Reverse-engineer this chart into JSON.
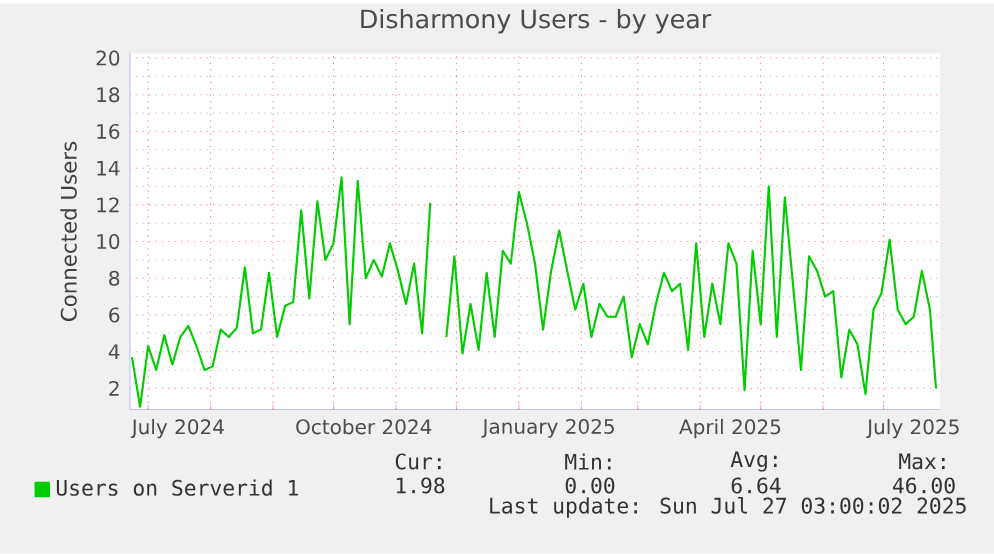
{
  "chart_data": {
    "type": "line",
    "title": "Disharmony Users - by year",
    "ylabel": "Connected Users",
    "x": [
      "2024-06-23",
      "2024-06-27",
      "2024-07-01",
      "2024-07-05",
      "2024-07-09",
      "2024-07-13",
      "2024-07-17",
      "2024-07-21",
      "2024-07-25",
      "2024-07-29",
      "2024-08-02",
      "2024-08-06",
      "2024-08-10",
      "2024-08-14",
      "2024-08-18",
      "2024-08-22",
      "2024-08-26",
      "2024-08-30",
      "2024-09-03",
      "2024-09-07",
      "2024-09-11",
      "2024-09-15",
      "2024-09-19",
      "2024-09-23",
      "2024-09-27",
      "2024-10-01",
      "2024-10-05",
      "2024-10-09",
      "2024-10-13",
      "2024-10-17",
      "2024-10-21",
      "2024-10-25",
      "2024-10-29",
      "2024-11-02",
      "2024-11-06",
      "2024-11-10",
      "2024-11-14",
      "2024-11-18",
      "2024-11-22",
      "2024-11-26",
      "2024-11-30",
      "2024-12-04",
      "2024-12-08",
      "2024-12-12",
      "2024-12-16",
      "2024-12-20",
      "2024-12-24",
      "2024-12-28",
      "2025-01-01",
      "2025-01-05",
      "2025-01-09",
      "2025-01-13",
      "2025-01-17",
      "2025-01-21",
      "2025-01-25",
      "2025-01-29",
      "2025-02-02",
      "2025-02-06",
      "2025-02-10",
      "2025-02-14",
      "2025-02-18",
      "2025-02-22",
      "2025-02-26",
      "2025-03-02",
      "2025-03-06",
      "2025-03-10",
      "2025-03-14",
      "2025-03-18",
      "2025-03-22",
      "2025-03-26",
      "2025-03-30",
      "2025-04-03",
      "2025-04-07",
      "2025-04-11",
      "2025-04-15",
      "2025-04-19",
      "2025-04-23",
      "2025-04-27",
      "2025-05-01",
      "2025-05-05",
      "2025-05-09",
      "2025-05-13",
      "2025-05-17",
      "2025-05-21",
      "2025-05-25",
      "2025-05-29",
      "2025-06-02",
      "2025-06-06",
      "2025-06-10",
      "2025-06-14",
      "2025-06-18",
      "2025-06-22",
      "2025-06-26",
      "2025-06-30",
      "2025-07-04",
      "2025-07-08",
      "2025-07-12",
      "2025-07-16",
      "2025-07-20",
      "2025-07-24",
      "2025-07-27"
    ],
    "series": [
      {
        "name": "Users on Serverid 1",
        "color": "#00cc00",
        "values": [
          3.7,
          1.0,
          4.3,
          3.0,
          4.9,
          3.3,
          4.8,
          5.4,
          4.3,
          3.0,
          3.2,
          5.2,
          4.8,
          5.3,
          8.6,
          5.0,
          5.2,
          8.3,
          4.8,
          6.5,
          6.7,
          11.7,
          6.9,
          12.2,
          9.0,
          9.9,
          13.5,
          5.5,
          13.3,
          8.0,
          9.0,
          8.1,
          9.9,
          8.4,
          6.6,
          8.8,
          5.0,
          12.1,
          null,
          4.8,
          9.2,
          3.9,
          6.6,
          4.1,
          8.3,
          4.8,
          9.5,
          8.8,
          12.7,
          11.0,
          8.8,
          5.2,
          8.4,
          10.6,
          8.4,
          6.3,
          7.7,
          4.8,
          6.6,
          5.9,
          5.9,
          7.0,
          3.7,
          5.5,
          4.4,
          6.6,
          8.3,
          7.3,
          7.7,
          4.1,
          9.9,
          4.8,
          7.7,
          5.5,
          9.9,
          8.8,
          1.9,
          9.5,
          5.5,
          13.0,
          4.8,
          12.4,
          7.7,
          3.0,
          9.2,
          8.4,
          7.0,
          7.3,
          2.6,
          5.2,
          4.4,
          1.7,
          6.3,
          7.2,
          10.1,
          6.3,
          5.5,
          5.9,
          8.4,
          6.3,
          2.0
        ]
      }
    ],
    "xlim": [
      "2024-06-22",
      "2025-07-29"
    ],
    "xticks": [
      {
        "value": "2024-07-16",
        "label": "July 2024"
      },
      {
        "value": "2024-10-16",
        "label": "October 2024"
      },
      {
        "value": "2025-01-16",
        "label": "January 2025"
      },
      {
        "value": "2025-04-16",
        "label": "April 2025"
      },
      {
        "value": "2025-07-16",
        "label": "July 2025"
      },
      {
        "value": "2024-07-01",
        "label": null
      },
      {
        "value": "2024-08-01",
        "label": null
      },
      {
        "value": "2024-09-01",
        "label": null
      },
      {
        "value": "2024-10-01",
        "label": null
      },
      {
        "value": "2024-11-01",
        "label": null
      },
      {
        "value": "2024-12-01",
        "label": null
      },
      {
        "value": "2025-01-01",
        "label": null
      },
      {
        "value": "2025-02-01",
        "label": null
      },
      {
        "value": "2025-03-01",
        "label": null
      },
      {
        "value": "2025-04-01",
        "label": null
      },
      {
        "value": "2025-05-01",
        "label": null
      },
      {
        "value": "2025-06-01",
        "label": null
      },
      {
        "value": "2025-07-01",
        "label": null
      }
    ],
    "ylim": [
      0.85,
      20.25
    ],
    "yticks": [
      2,
      4,
      6,
      8,
      10,
      12,
      14,
      16,
      18,
      20
    ],
    "grid": true,
    "legend": "bottom",
    "annotations": [
      "Cur:",
      "Min:",
      "Avg:",
      "Max:",
      "1.98",
      "0.00",
      "6.64",
      "46.00",
      "Last update: Sun Jul 27 03:00:02 2025"
    ]
  }
}
